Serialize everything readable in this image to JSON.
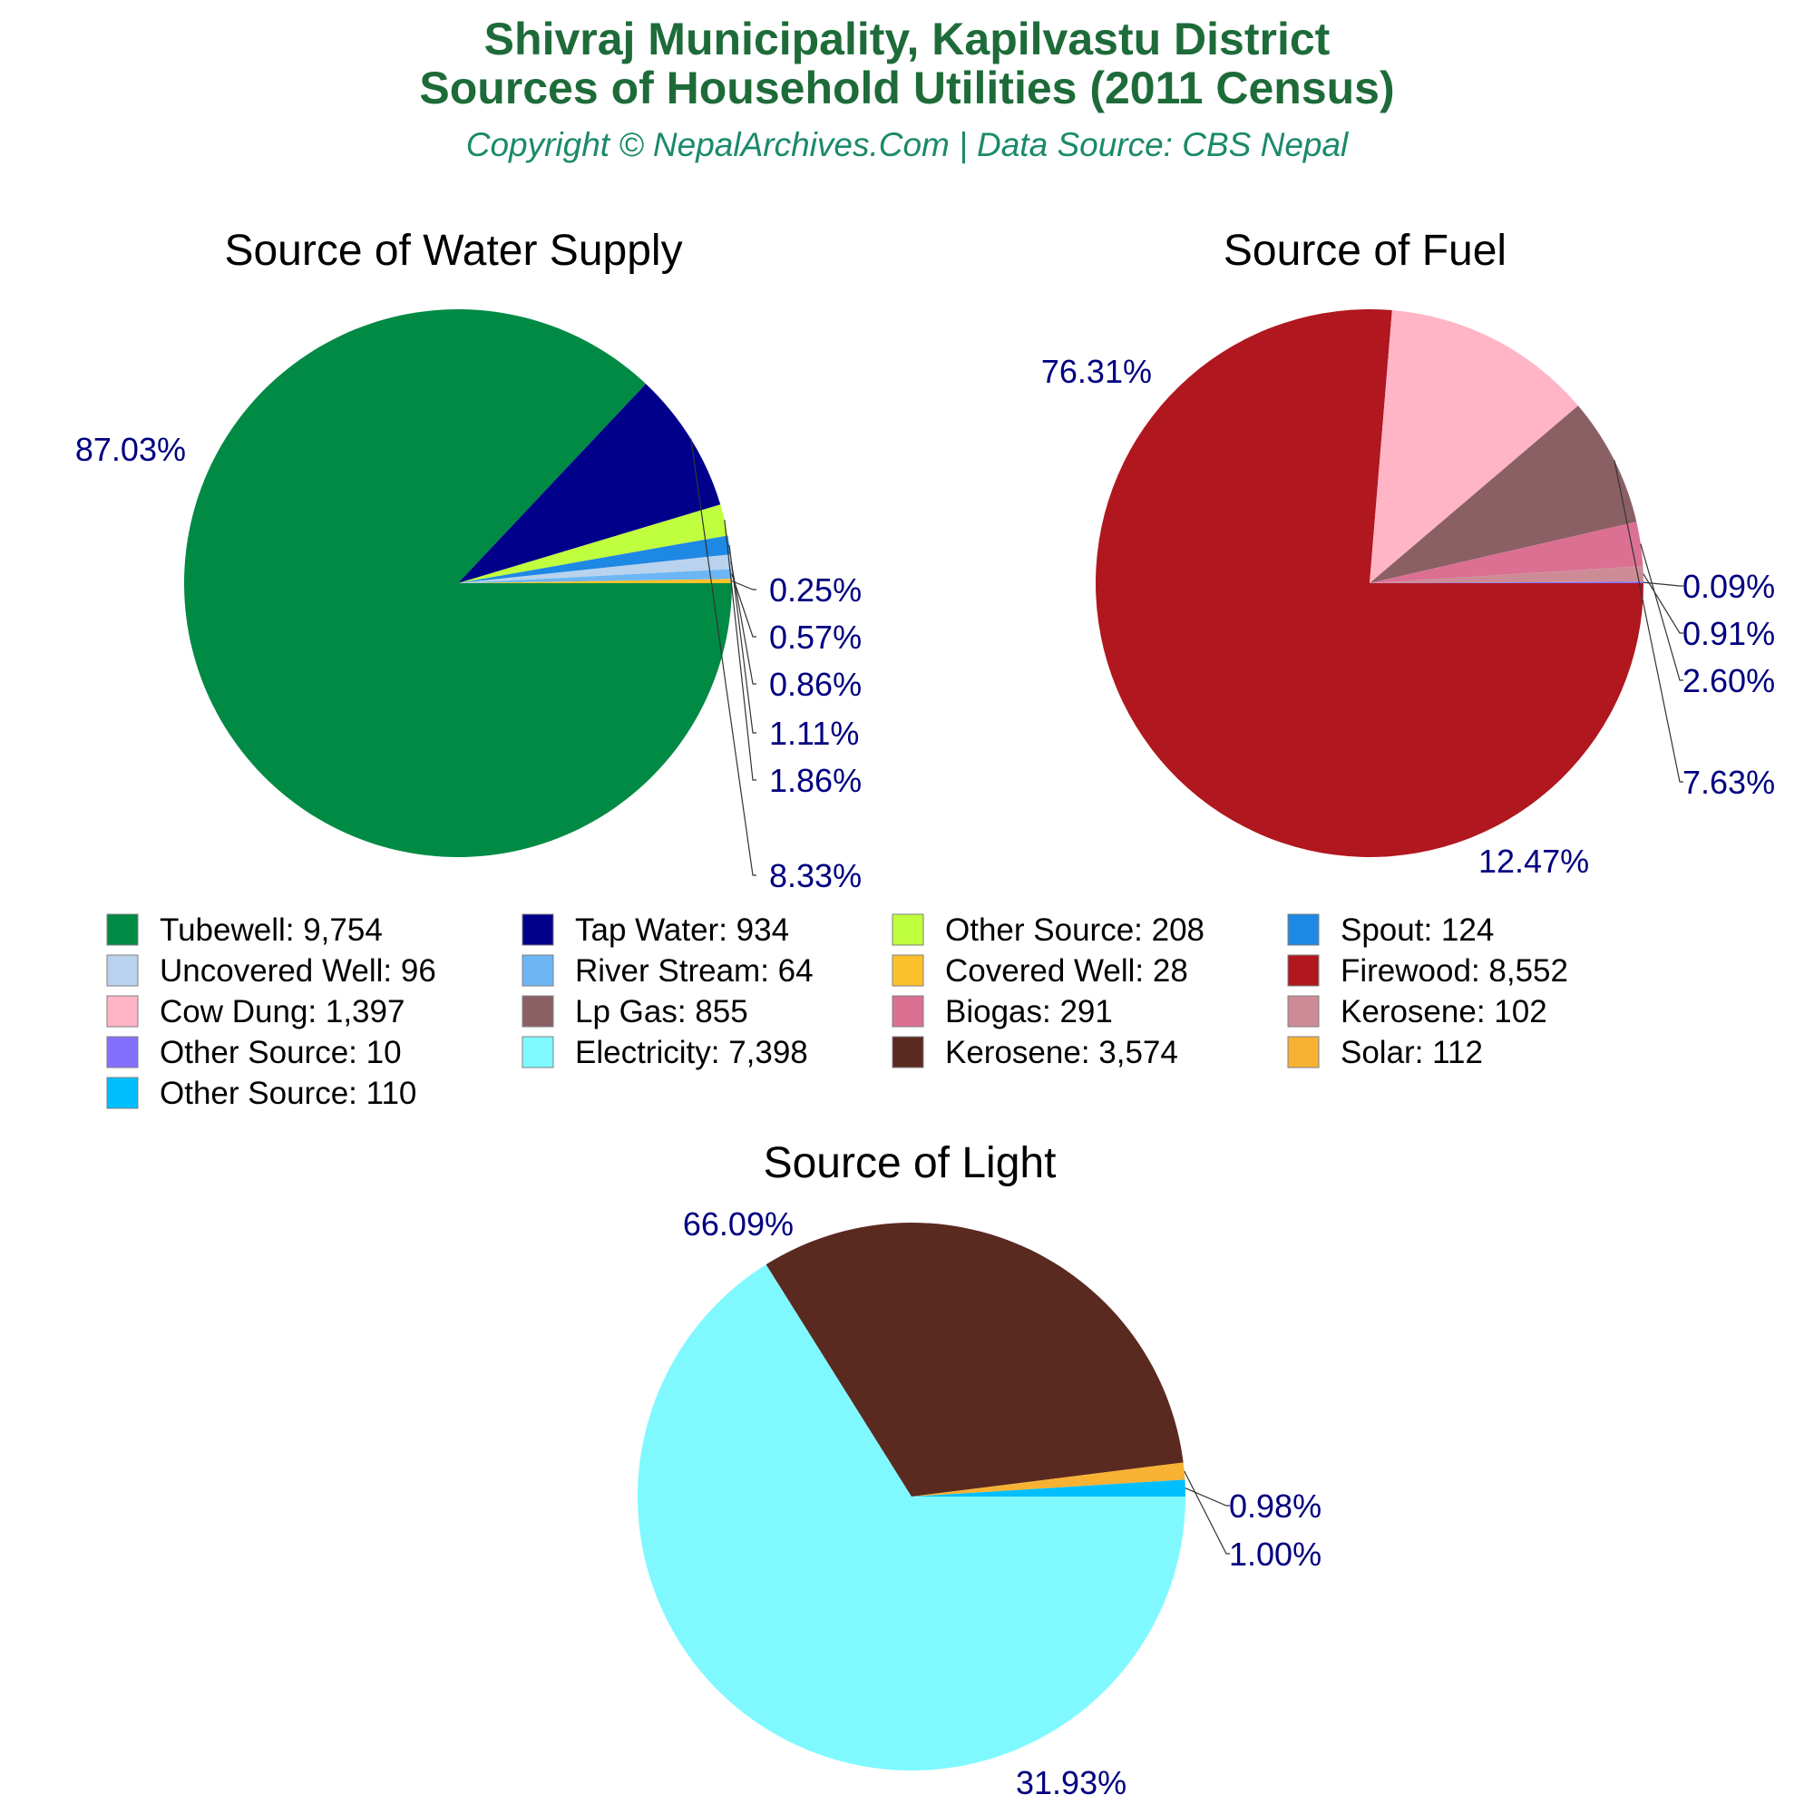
{
  "header": {
    "title_line1": "Shivraj Municipality, Kapilvastu District",
    "title_line2": "Sources of Household Utilities (2011 Census)",
    "subtitle": "Copyright © NepalArchives.Com | Data Source: CBS Nepal"
  },
  "chart_data": [
    {
      "type": "pie",
      "title": "Source of Water Supply",
      "slices": [
        {
          "label": "Tubewell",
          "value": 9754,
          "pct": "87.03%",
          "color": "#008a44"
        },
        {
          "label": "Tap Water",
          "value": 934,
          "pct": "8.33%",
          "color": "#00008b"
        },
        {
          "label": "Other Source",
          "value": 208,
          "pct": "1.86%",
          "color": "#c0ff3e"
        },
        {
          "label": "Spout",
          "value": 124,
          "pct": "1.11%",
          "color": "#1e88e5"
        },
        {
          "label": "Uncovered Well",
          "value": 96,
          "pct": "0.86%",
          "color": "#b9d3ee"
        },
        {
          "label": "River Stream",
          "value": 64,
          "pct": "0.57%",
          "color": "#6cb6f5"
        },
        {
          "label": "Covered Well",
          "value": 28,
          "pct": "0.25%",
          "color": "#fcc02a"
        }
      ]
    },
    {
      "type": "pie",
      "title": "Source of Fuel",
      "slices": [
        {
          "label": "Firewood",
          "value": 8552,
          "pct": "76.31%",
          "color": "#b0171f"
        },
        {
          "label": "Cow Dung",
          "value": 1397,
          "pct": "12.47%",
          "color": "#ffb5c5"
        },
        {
          "label": "Lp Gas",
          "value": 855,
          "pct": "7.63%",
          "color": "#8b6065"
        },
        {
          "label": "Biogas",
          "value": 291,
          "pct": "2.60%",
          "color": "#db7093"
        },
        {
          "label": "Kerosene",
          "value": 102,
          "pct": "0.91%",
          "color": "#cd8c95"
        },
        {
          "label": "Other Source",
          "value": 10,
          "pct": "0.09%",
          "color": "#8470ff"
        }
      ]
    },
    {
      "type": "pie",
      "title": "Source of Light",
      "slices": [
        {
          "label": "Electricity",
          "value": 7398,
          "pct": "66.09%",
          "color": "#7ff9ff"
        },
        {
          "label": "Kerosene",
          "value": 3574,
          "pct": "31.93%",
          "color": "#5a2a20"
        },
        {
          "label": "Solar",
          "value": 112,
          "pct": "1.00%",
          "color": "#f8b233"
        },
        {
          "label": "Other Source",
          "value": 110,
          "pct": "0.98%",
          "color": "#00bfff"
        }
      ]
    }
  ],
  "legend": {
    "items": [
      {
        "text": "Tubewell: 9,754",
        "color": "#008a44"
      },
      {
        "text": "Tap Water: 934",
        "color": "#00008b"
      },
      {
        "text": "Other Source: 208",
        "color": "#c0ff3e"
      },
      {
        "text": "Spout: 124",
        "color": "#1e88e5"
      },
      {
        "text": "Uncovered Well: 96",
        "color": "#b9d3ee"
      },
      {
        "text": "River Stream: 64",
        "color": "#6cb6f5"
      },
      {
        "text": "Covered Well: 28",
        "color": "#fcc02a"
      },
      {
        "text": "Firewood: 8,552",
        "color": "#b0171f"
      },
      {
        "text": "Cow Dung: 1,397",
        "color": "#ffb5c5"
      },
      {
        "text": "Lp Gas: 855",
        "color": "#8b6065"
      },
      {
        "text": "Biogas: 291",
        "color": "#db7093"
      },
      {
        "text": "Kerosene: 102",
        "color": "#cd8c95"
      },
      {
        "text": "Other Source: 10",
        "color": "#8470ff"
      },
      {
        "text": "Electricity: 7,398",
        "color": "#7ff9ff"
      },
      {
        "text": "Kerosene: 3,574",
        "color": "#5a2a20"
      },
      {
        "text": "Solar: 112",
        "color": "#f8b233"
      },
      {
        "text": "Other Source: 110",
        "color": "#00bfff"
      }
    ]
  }
}
